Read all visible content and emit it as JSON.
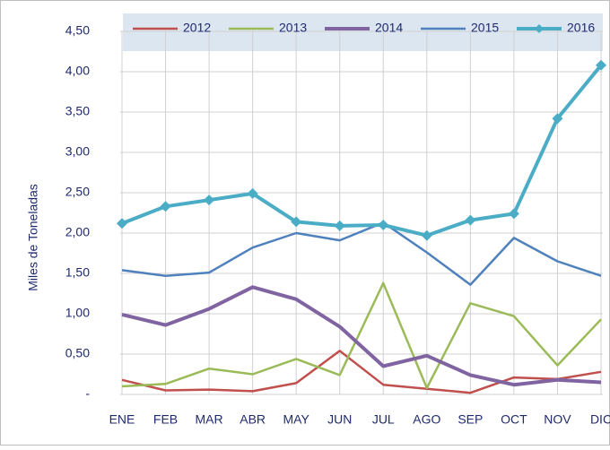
{
  "chart_data": {
    "type": "line",
    "y_label": "Miles de Toneladas",
    "categories": [
      "ENE",
      "FEB",
      "MAR",
      "ABR",
      "MAY",
      "JUN",
      "JUL",
      "AGO",
      "SEP",
      "OCT",
      "NOV",
      "DIC"
    ],
    "series": [
      {
        "name": "2012",
        "color": "#c0504d",
        "values": [
          0.18,
          0.05,
          0.06,
          0.04,
          0.14,
          0.54,
          0.12,
          0.07,
          0.02,
          0.21,
          0.19,
          0.28
        ]
      },
      {
        "name": "2013",
        "color": "#9bbb59",
        "values": [
          0.1,
          0.13,
          0.32,
          0.25,
          0.44,
          0.24,
          1.38,
          0.08,
          1.13,
          0.97,
          0.36,
          0.93
        ]
      },
      {
        "name": "2014",
        "color": "#8064a2",
        "values": [
          0.99,
          0.86,
          1.06,
          1.33,
          1.18,
          0.84,
          0.35,
          0.48,
          0.24,
          0.12,
          0.18,
          0.15
        ]
      },
      {
        "name": "2015",
        "color": "#4f81bd",
        "values": [
          1.54,
          1.47,
          1.51,
          1.82,
          2.0,
          1.91,
          2.13,
          1.76,
          1.36,
          1.94,
          1.65,
          1.47
        ]
      },
      {
        "name": "2016",
        "color": "#4bacc6",
        "values": [
          2.12,
          2.33,
          2.41,
          2.49,
          2.14,
          2.09,
          2.1,
          1.97,
          2.16,
          2.24,
          3.42,
          4.08
        ]
      }
    ],
    "ylim": [
      0,
      4.5
    ],
    "yticks": [
      {
        "value": 0,
        "label": "-"
      },
      {
        "value": 0.5,
        "label": "0,50"
      },
      {
        "value": 1,
        "label": "1,00"
      },
      {
        "value": 1.5,
        "label": "1,50"
      },
      {
        "value": 2,
        "label": "2,00"
      },
      {
        "value": 2.5,
        "label": "2,50"
      },
      {
        "value": 3,
        "label": "3,00"
      },
      {
        "value": 3.5,
        "label": "3,50"
      },
      {
        "value": 4,
        "label": "4,00"
      },
      {
        "value": 4.5,
        "label": "4,50"
      }
    ],
    "grid": true,
    "legend": "top"
  }
}
